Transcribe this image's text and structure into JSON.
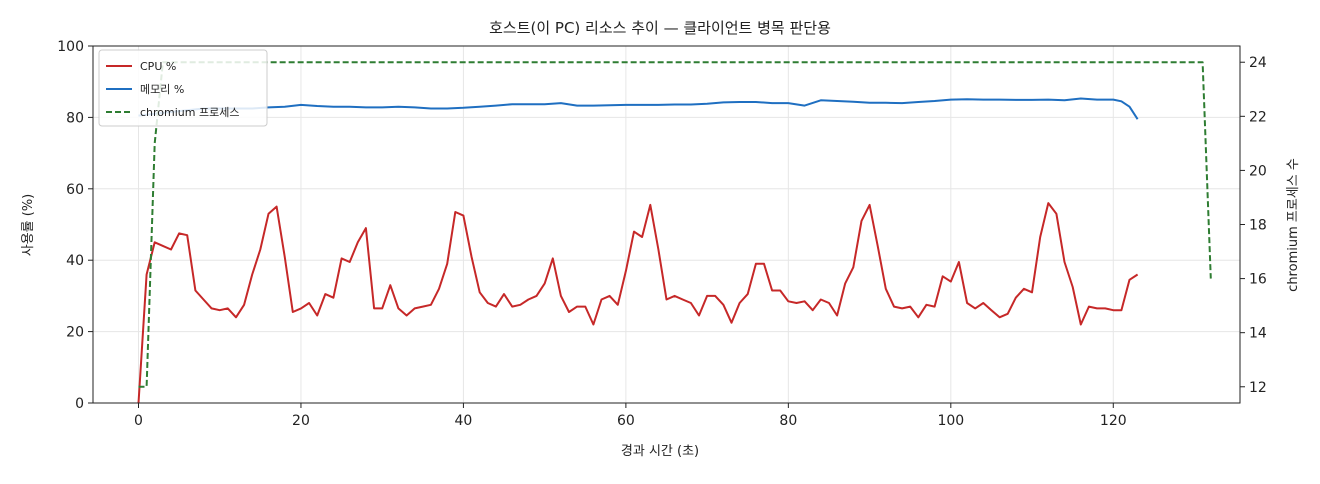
{
  "chart_data": {
    "type": "line",
    "title": "호스트(이 PC) 리소스 추이 — 클라이언트 병목 판단용",
    "xlabel": "경과 시간 (초)",
    "ylabel": "사용률 (%)",
    "y2label": "chromium 프로세스 수",
    "xlim": [
      -5.6,
      135.6
    ],
    "ylim": [
      0,
      100
    ],
    "y2lim": [
      11.4,
      24.6
    ],
    "xticks": [
      0,
      20,
      40,
      60,
      80,
      100,
      120
    ],
    "yticks": [
      0,
      20,
      40,
      60,
      80,
      100
    ],
    "y2ticks": [
      12,
      14,
      16,
      18,
      20,
      22,
      24
    ],
    "grid": true,
    "legend_position": "top-left",
    "series": [
      {
        "name": "CPU %",
        "axis": "left",
        "color": "#c62828",
        "style": "solid",
        "points": [
          [
            0,
            0
          ],
          [
            1,
            36
          ],
          [
            2,
            45
          ],
          [
            3,
            44
          ],
          [
            4,
            43
          ],
          [
            5,
            47.5
          ],
          [
            6,
            47
          ],
          [
            7,
            31.5
          ],
          [
            8,
            29
          ],
          [
            9,
            26.5
          ],
          [
            10,
            26
          ],
          [
            11,
            26.5
          ],
          [
            12,
            24
          ],
          [
            13,
            27.5
          ],
          [
            14,
            36
          ],
          [
            15,
            43
          ],
          [
            16,
            53
          ],
          [
            17,
            55
          ],
          [
            18,
            41
          ],
          [
            19,
            25.5
          ],
          [
            20,
            26.5
          ],
          [
            21,
            28
          ],
          [
            22,
            24.5
          ],
          [
            23,
            30.5
          ],
          [
            24,
            29.5
          ],
          [
            25,
            40.5
          ],
          [
            26,
            39.5
          ],
          [
            27,
            45
          ],
          [
            28,
            49
          ],
          [
            29,
            26.5
          ],
          [
            30,
            26.5
          ],
          [
            31,
            33
          ],
          [
            32,
            26.5
          ],
          [
            33,
            24.5
          ],
          [
            34,
            26.5
          ],
          [
            35,
            27
          ],
          [
            36,
            27.5
          ],
          [
            37,
            32
          ],
          [
            38,
            39
          ],
          [
            39,
            53.5
          ],
          [
            40,
            52.5
          ],
          [
            41,
            41
          ],
          [
            42,
            31
          ],
          [
            43,
            28
          ],
          [
            44,
            27
          ],
          [
            45,
            30.5
          ],
          [
            46,
            27
          ],
          [
            47,
            27.5
          ],
          [
            48,
            29
          ],
          [
            49,
            30
          ],
          [
            50,
            33.5
          ],
          [
            51,
            40.5
          ],
          [
            52,
            30
          ],
          [
            53,
            25.5
          ],
          [
            54,
            27
          ],
          [
            55,
            27
          ],
          [
            56,
            22
          ],
          [
            57,
            29
          ],
          [
            58,
            30
          ],
          [
            59,
            27.5
          ],
          [
            60,
            37
          ],
          [
            61,
            48
          ],
          [
            62,
            46.5
          ],
          [
            63,
            55.5
          ],
          [
            64,
            43
          ],
          [
            65,
            29
          ],
          [
            66,
            30
          ],
          [
            67,
            29
          ],
          [
            68,
            28
          ],
          [
            69,
            24.5
          ],
          [
            70,
            30
          ],
          [
            71,
            30
          ],
          [
            72,
            27.5
          ],
          [
            73,
            22.5
          ],
          [
            74,
            28
          ],
          [
            75,
            30.5
          ],
          [
            76,
            39
          ],
          [
            77,
            39
          ],
          [
            78,
            31.5
          ],
          [
            79,
            31.5
          ],
          [
            80,
            28.5
          ],
          [
            81,
            28
          ],
          [
            82,
            28.5
          ],
          [
            83,
            26
          ],
          [
            84,
            29
          ],
          [
            85,
            28
          ],
          [
            86,
            24.5
          ],
          [
            87,
            33.5
          ],
          [
            88,
            38
          ],
          [
            89,
            51
          ],
          [
            90,
            55.5
          ],
          [
            91,
            44
          ],
          [
            92,
            32
          ],
          [
            93,
            27
          ],
          [
            94,
            26.5
          ],
          [
            95,
            27
          ],
          [
            96,
            24
          ],
          [
            97,
            27.5
          ],
          [
            98,
            27
          ],
          [
            99,
            35.5
          ],
          [
            100,
            34
          ],
          [
            101,
            39.5
          ],
          [
            102,
            28
          ],
          [
            103,
            26.5
          ],
          [
            104,
            28
          ],
          [
            105,
            26
          ],
          [
            106,
            24
          ],
          [
            107,
            25
          ],
          [
            108,
            29.5
          ],
          [
            109,
            32
          ],
          [
            110,
            31
          ],
          [
            111,
            46.5
          ],
          [
            112,
            56
          ],
          [
            113,
            53
          ],
          [
            114,
            39.5
          ],
          [
            115,
            32.5
          ],
          [
            116,
            22
          ],
          [
            117,
            27
          ],
          [
            118,
            26.5
          ],
          [
            119,
            26.5
          ],
          [
            120,
            26
          ],
          [
            121,
            26
          ],
          [
            122,
            34.5
          ],
          [
            123,
            36
          ]
        ]
      },
      {
        "name": "메모리 %",
        "axis": "left",
        "color": "#1f6fc1",
        "style": "solid",
        "points": [
          [
            0,
            80.5
          ],
          [
            2,
            81
          ],
          [
            4,
            81.5
          ],
          [
            6,
            82
          ],
          [
            8,
            82.5
          ],
          [
            10,
            82.5
          ],
          [
            12,
            82.5
          ],
          [
            14,
            82.5
          ],
          [
            16,
            82.8
          ],
          [
            18,
            83
          ],
          [
            20,
            83.5
          ],
          [
            22,
            83.2
          ],
          [
            24,
            83
          ],
          [
            26,
            83
          ],
          [
            28,
            82.8
          ],
          [
            30,
            82.8
          ],
          [
            32,
            83
          ],
          [
            34,
            82.8
          ],
          [
            36,
            82.5
          ],
          [
            38,
            82.5
          ],
          [
            40,
            82.7
          ],
          [
            42,
            83
          ],
          [
            44,
            83.3
          ],
          [
            46,
            83.7
          ],
          [
            48,
            83.7
          ],
          [
            50,
            83.7
          ],
          [
            52,
            84
          ],
          [
            54,
            83.3
          ],
          [
            56,
            83.3
          ],
          [
            58,
            83.4
          ],
          [
            60,
            83.5
          ],
          [
            62,
            83.5
          ],
          [
            64,
            83.5
          ],
          [
            66,
            83.6
          ],
          [
            68,
            83.6
          ],
          [
            70,
            83.8
          ],
          [
            72,
            84.2
          ],
          [
            74,
            84.3
          ],
          [
            76,
            84.3
          ],
          [
            78,
            84
          ],
          [
            80,
            84
          ],
          [
            82,
            83.3
          ],
          [
            84,
            84.8
          ],
          [
            86,
            84.6
          ],
          [
            88,
            84.4
          ],
          [
            90,
            84.1
          ],
          [
            92,
            84.1
          ],
          [
            94,
            84
          ],
          [
            96,
            84.3
          ],
          [
            98,
            84.6
          ],
          [
            100,
            85
          ],
          [
            102,
            85.1
          ],
          [
            104,
            85
          ],
          [
            106,
            85
          ],
          [
            108,
            84.9
          ],
          [
            110,
            84.9
          ],
          [
            112,
            85
          ],
          [
            114,
            84.8
          ],
          [
            116,
            85.3
          ],
          [
            118,
            85
          ],
          [
            120,
            85
          ],
          [
            121,
            84.5
          ],
          [
            122,
            83
          ],
          [
            123,
            79.5
          ]
        ]
      },
      {
        "name": "chromium 프로세스",
        "axis": "right",
        "color": "#2e7d32",
        "style": "dashed",
        "points": [
          [
            0,
            12
          ],
          [
            1,
            12
          ],
          [
            2,
            21
          ],
          [
            3,
            24
          ],
          [
            4,
            24
          ],
          [
            131,
            24
          ],
          [
            132,
            16
          ]
        ]
      }
    ]
  }
}
